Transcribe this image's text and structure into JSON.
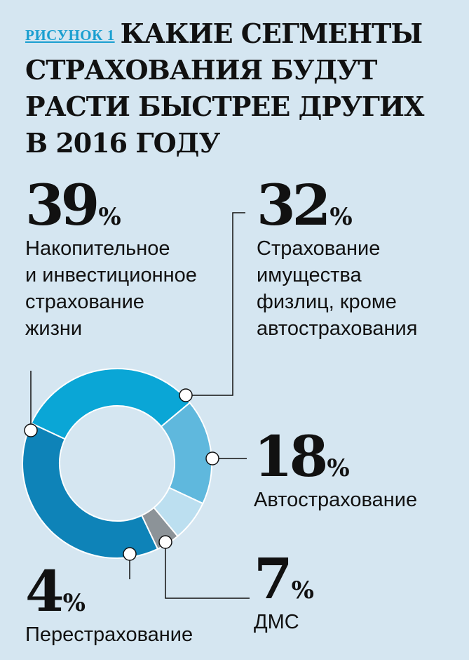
{
  "figure": {
    "label": "РИСУНОК 1",
    "title": "КАКИЕ СЕГМЕНТЫ СТРАХОВАНИЯ БУДУТ РАСТИ БЫСТРЕЕ ДРУГИХ В 2016 ГОДУ"
  },
  "chart_data": {
    "type": "pie",
    "title": "КАКИЕ СЕГМЕНТЫ СТРАХОВАНИЯ БУДУТ РАСТИ БЫСТРЕЕ ДРУГИХ В 2016 ГОДУ",
    "unit": "%",
    "slices": [
      {
        "label": "Накопительное и инвестиционное страхование жизни",
        "value": 39,
        "color": "#0e83b8"
      },
      {
        "label": "Страхование имущества физлиц, кроме автострахования",
        "value": 32,
        "color": "#0aa6d6"
      },
      {
        "label": "Автострахование",
        "value": 18,
        "color": "#5fb8dd"
      },
      {
        "label": "ДМС",
        "value": 7,
        "color": "#bcdff0"
      },
      {
        "label": "Перестрахование",
        "value": 4,
        "color": "#8c9398"
      }
    ]
  },
  "labels": {
    "life": {
      "value": "39",
      "sym": "%",
      "desc": "Накопительное\nи инвестиционное\nстрахование\nжизни"
    },
    "prop": {
      "value": "32",
      "sym": "%",
      "desc": "Страхование\nимущества\nфизлиц, кроме\nавтострахования"
    },
    "auto": {
      "value": "18",
      "sym": "%",
      "desc": "Автострахование"
    },
    "dms": {
      "value": "7",
      "sym": "%",
      "desc": "ДМС"
    },
    "reins": {
      "value": "4",
      "sym": "%",
      "desc": "Перестрахование"
    }
  }
}
